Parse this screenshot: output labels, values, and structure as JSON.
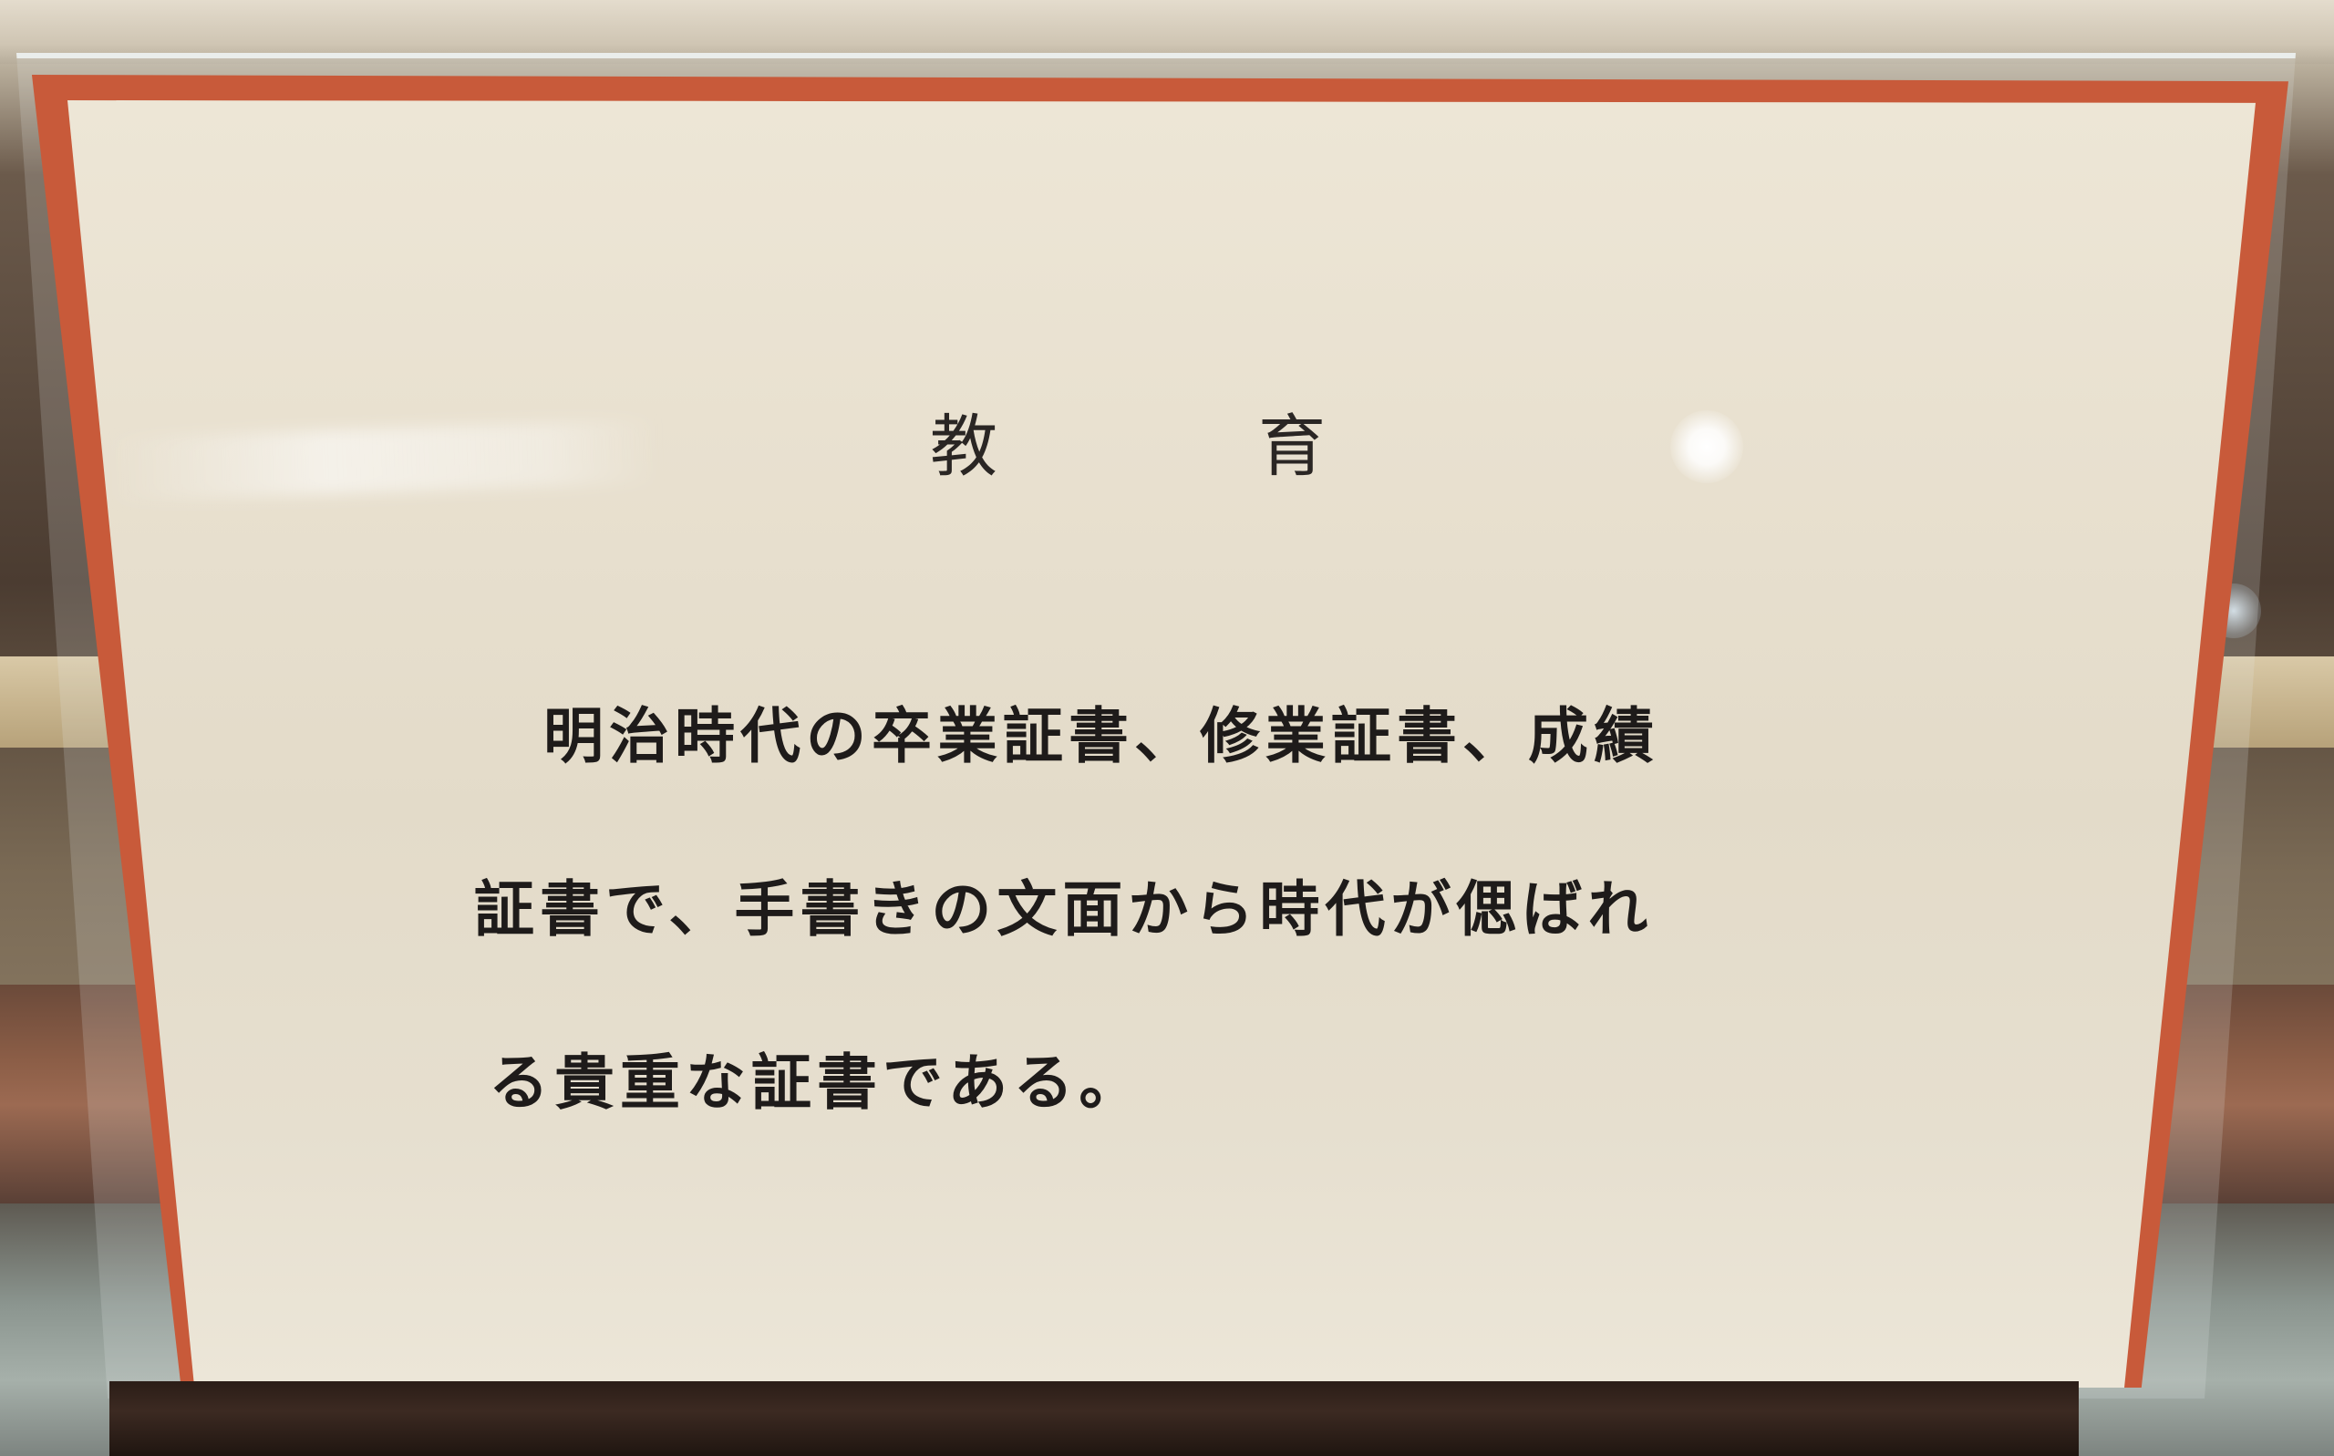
{
  "placard": {
    "title_left": "教",
    "title_right": "育",
    "body_lines": [
      "明治時代の卒業証書、修業証書、成績",
      "証書で、手書きの文面から時代が偲ばれ",
      "る貴重な証書である。"
    ]
  },
  "colors": {
    "card_border": "#c85a3a",
    "card_paper": "#e8e0cf",
    "text": "#1e1b1a",
    "stand": "#2b1d17"
  }
}
